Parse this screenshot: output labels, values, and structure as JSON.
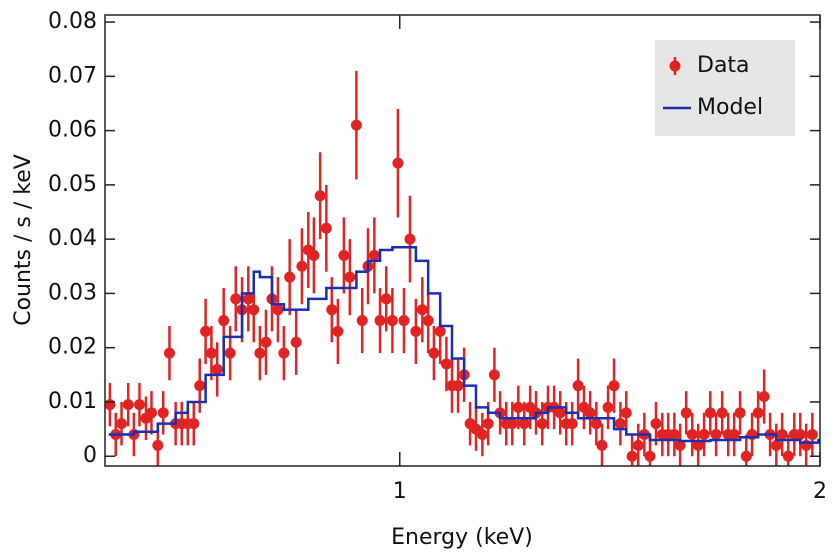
{
  "chart_data": {
    "type": "errorbar",
    "xlabel": "Energy (keV)",
    "ylabel": "Counts / s / keV",
    "xlim": [
      0.615,
      2
    ],
    "xticks": [
      1,
      2
    ],
    "xlog": true,
    "ylim": [
      -0.0018,
      0.0813
    ],
    "yticks": [
      0,
      0.01,
      0.02,
      0.03,
      0.04,
      0.05,
      0.06,
      0.07,
      0.08
    ],
    "legend": "upper right",
    "series": [
      {
        "name": "Data",
        "color": "#e02424",
        "type": "errorbar",
        "x": [
          0.62,
          0.626,
          0.632,
          0.639,
          0.645,
          0.651,
          0.658,
          0.664,
          0.671,
          0.677,
          0.684,
          0.691,
          0.698,
          0.705,
          0.712,
          0.719,
          0.726,
          0.733,
          0.74,
          0.748,
          0.756,
          0.763,
          0.771,
          0.779,
          0.786,
          0.794,
          0.802,
          0.81,
          0.818,
          0.826,
          0.834,
          0.843,
          0.851,
          0.86,
          0.868,
          0.877,
          0.886,
          0.894,
          0.903,
          0.912,
          0.921,
          0.931,
          0.94,
          0.949,
          0.959,
          0.968,
          0.978,
          0.988,
          0.997,
          1.007,
          1.017,
          1.027,
          1.038,
          1.048,
          1.058,
          1.069,
          1.08,
          1.09,
          1.101,
          1.112,
          1.123,
          1.134,
          1.146,
          1.157,
          1.169,
          1.18,
          1.192,
          1.204,
          1.216,
          1.228,
          1.24,
          1.252,
          1.265,
          1.277,
          1.29,
          1.303,
          1.316,
          1.329,
          1.342,
          1.355,
          1.369,
          1.383,
          1.396,
          1.41,
          1.424,
          1.439,
          1.453,
          1.467,
          1.482,
          1.497,
          1.511,
          1.526,
          1.542,
          1.557,
          1.573,
          1.588,
          1.604,
          1.62,
          1.636,
          1.652,
          1.669,
          1.685,
          1.702,
          1.719,
          1.736,
          1.753,
          1.771,
          1.788,
          1.806,
          1.824,
          1.842,
          1.861,
          1.879,
          1.898,
          1.917,
          1.936,
          1.955,
          1.975
        ],
        "values": [
          0.0095,
          0.004,
          0.006,
          0.0095,
          0.004,
          0.0095,
          0.007,
          0.008,
          0.002,
          0.008,
          0.019,
          0.006,
          0.006,
          0.006,
          0.006,
          0.013,
          0.023,
          0.019,
          0.016,
          0.025,
          0.019,
          0.029,
          0.027,
          0.029,
          0.027,
          0.019,
          0.021,
          0.029,
          0.027,
          0.019,
          0.033,
          0.021,
          0.035,
          0.038,
          0.037,
          0.048,
          0.042,
          0.027,
          0.023,
          0.037,
          0.033,
          0.061,
          0.025,
          0.035,
          0.037,
          0.025,
          0.029,
          0.025,
          0.054,
          0.025,
          0.04,
          0.023,
          0.027,
          0.025,
          0.019,
          0.023,
          0.017,
          0.013,
          0.013,
          0.015,
          0.006,
          0.005,
          0.004,
          0.006,
          0.015,
          0.008,
          0.006,
          0.006,
          0.009,
          0.006,
          0.009,
          0.008,
          0.006,
          0.009,
          0.009,
          0.008,
          0.006,
          0.006,
          0.013,
          0.009,
          0.008,
          0.006,
          0.002,
          0.009,
          0.013,
          0.006,
          0.008,
          0.0,
          0.002,
          0.004,
          0.0,
          0.006,
          0.004,
          0.004,
          0.004,
          0.002,
          0.008,
          0.004,
          0.002,
          0.004,
          0.008,
          0.004,
          0.008,
          0.004,
          0.004,
          0.008,
          0.0,
          0.004,
          0.008,
          0.011,
          0.004,
          0.002,
          0.004,
          0.0,
          0.004,
          0.004,
          0.002,
          0.004
        ],
        "errors": [
          0.004,
          0.004,
          0.004,
          0.004,
          0.004,
          0.004,
          0.004,
          0.004,
          0.004,
          0.004,
          0.005,
          0.004,
          0.004,
          0.004,
          0.004,
          0.005,
          0.006,
          0.005,
          0.005,
          0.006,
          0.005,
          0.006,
          0.006,
          0.006,
          0.006,
          0.005,
          0.006,
          0.006,
          0.006,
          0.005,
          0.007,
          0.006,
          0.007,
          0.007,
          0.007,
          0.008,
          0.008,
          0.006,
          0.006,
          0.007,
          0.007,
          0.01,
          0.006,
          0.007,
          0.007,
          0.006,
          0.006,
          0.006,
          0.01,
          0.006,
          0.008,
          0.006,
          0.006,
          0.006,
          0.005,
          0.006,
          0.005,
          0.005,
          0.005,
          0.005,
          0.004,
          0.004,
          0.004,
          0.004,
          0.005,
          0.004,
          0.004,
          0.004,
          0.004,
          0.004,
          0.004,
          0.004,
          0.004,
          0.004,
          0.004,
          0.004,
          0.004,
          0.004,
          0.005,
          0.004,
          0.004,
          0.004,
          0.004,
          0.004,
          0.005,
          0.004,
          0.004,
          0.004,
          0.004,
          0.004,
          0.004,
          0.004,
          0.004,
          0.004,
          0.004,
          0.004,
          0.004,
          0.004,
          0.004,
          0.004,
          0.004,
          0.004,
          0.004,
          0.004,
          0.004,
          0.004,
          0.004,
          0.004,
          0.004,
          0.005,
          0.004,
          0.004,
          0.004,
          0.004,
          0.004,
          0.004,
          0.004,
          0.004
        ]
      },
      {
        "name": "Model",
        "color": "#1a2fb0",
        "type": "step",
        "x": [
          0.62,
          0.645,
          0.671,
          0.691,
          0.705,
          0.726,
          0.748,
          0.771,
          0.786,
          0.794,
          0.81,
          0.826,
          0.843,
          0.86,
          0.886,
          0.912,
          0.931,
          0.949,
          0.968,
          0.988,
          1.017,
          1.027,
          1.048,
          1.069,
          1.09,
          1.112,
          1.134,
          1.157,
          1.18,
          1.216,
          1.252,
          1.277,
          1.316,
          1.342,
          1.383,
          1.424,
          1.453,
          1.511,
          1.588,
          1.669,
          1.753,
          1.806,
          1.861,
          1.936,
          1.995
        ],
        "values": [
          0.004,
          0.0045,
          0.006,
          0.008,
          0.01,
          0.015,
          0.022,
          0.03,
          0.034,
          0.033,
          0.028,
          0.027,
          0.027,
          0.029,
          0.031,
          0.031,
          0.034,
          0.036,
          0.038,
          0.0385,
          0.0385,
          0.036,
          0.03,
          0.024,
          0.018,
          0.013,
          0.009,
          0.008,
          0.007,
          0.007,
          0.008,
          0.009,
          0.008,
          0.007,
          0.007,
          0.005,
          0.004,
          0.003,
          0.0028,
          0.003,
          0.0035,
          0.004,
          0.003,
          0.0025,
          0.003
        ]
      }
    ]
  }
}
